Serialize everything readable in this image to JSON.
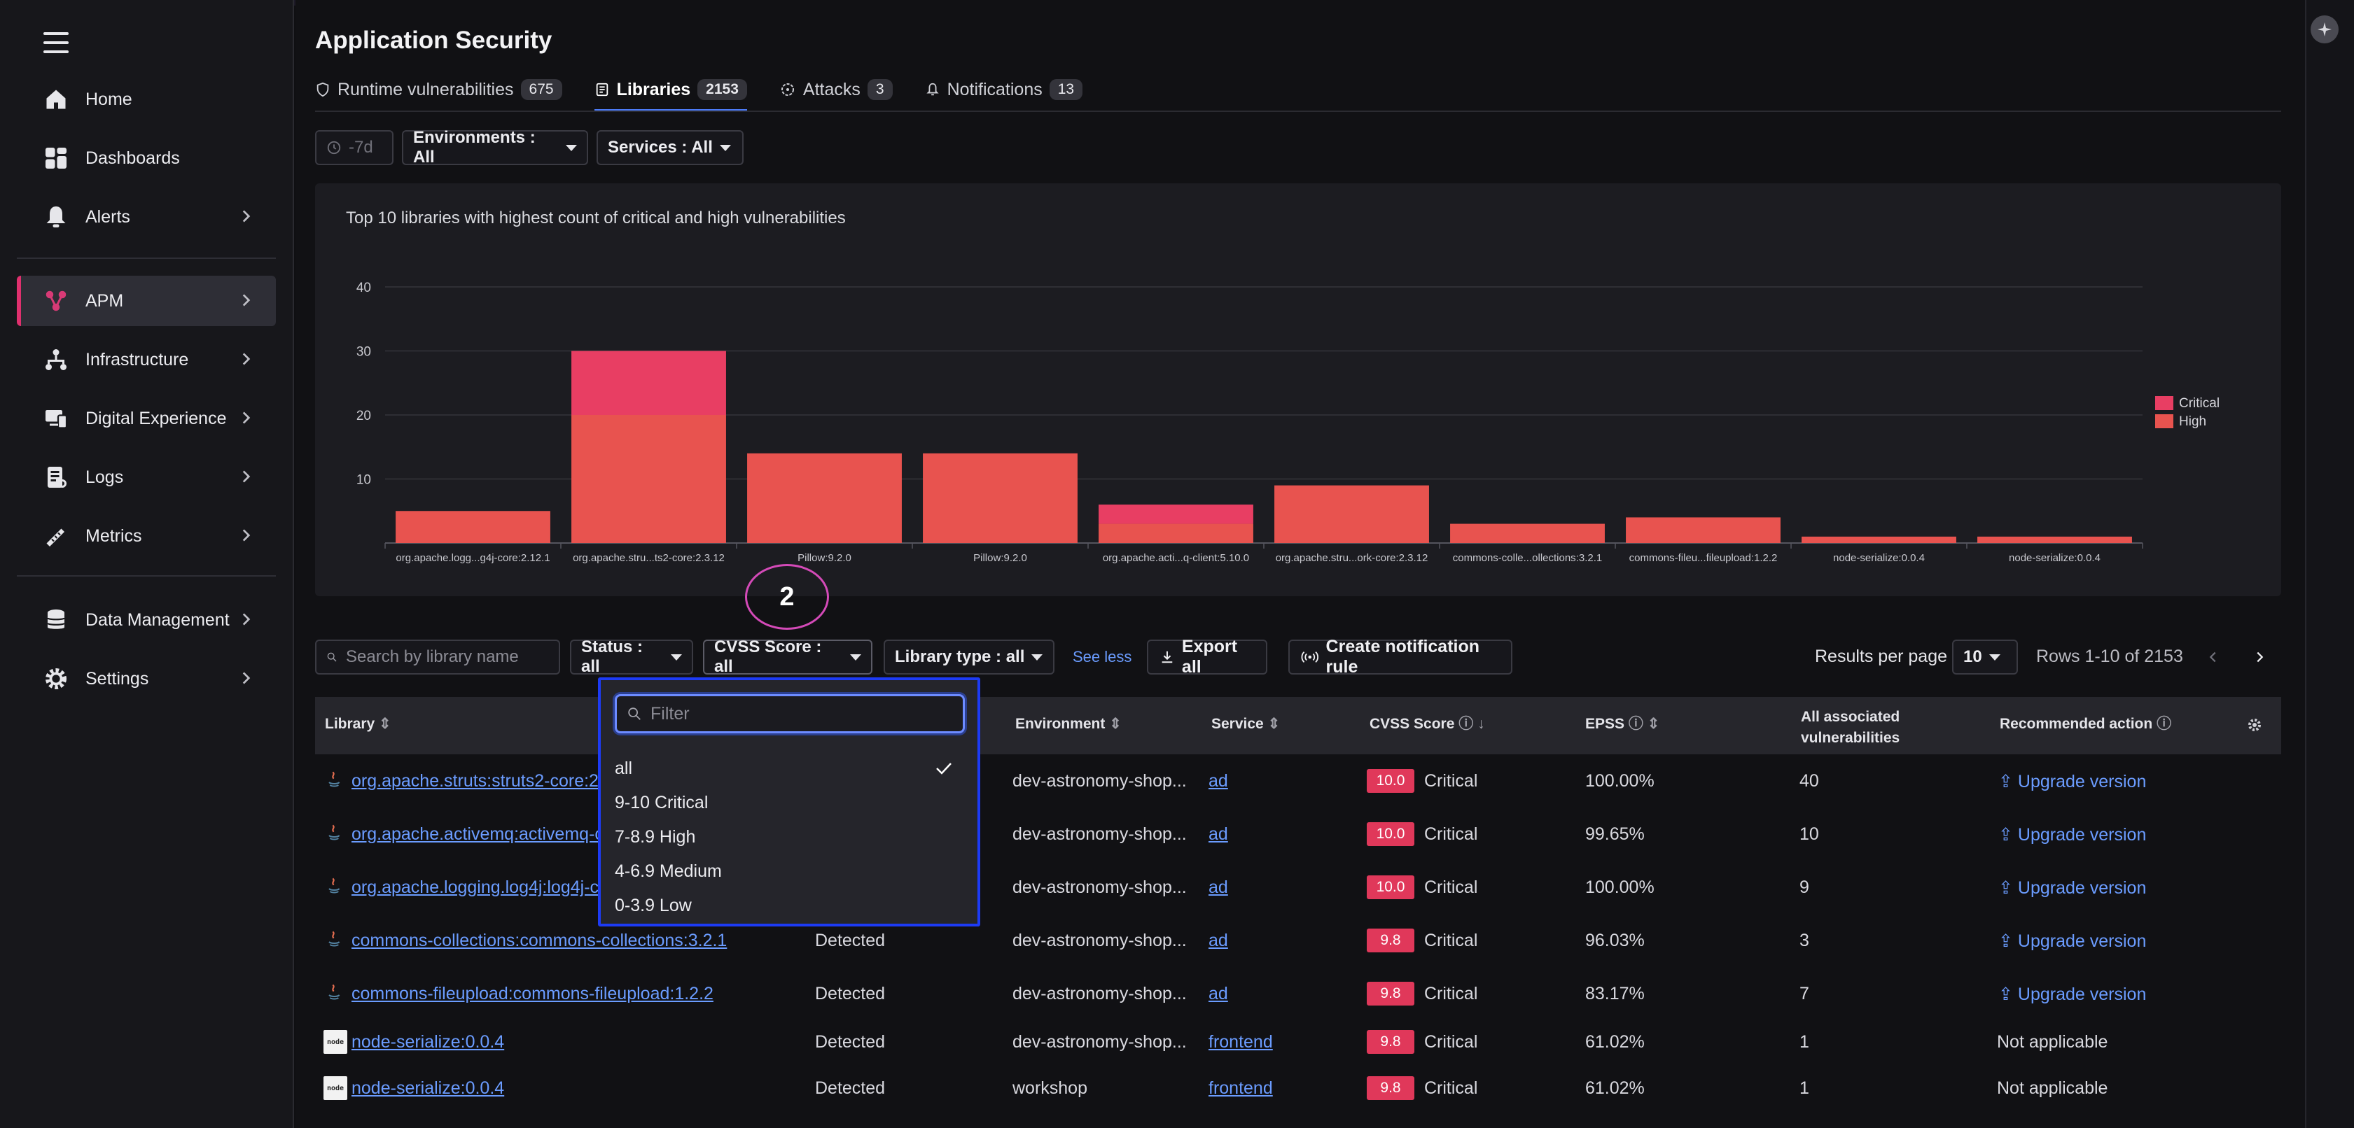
{
  "sidebar": {
    "items": [
      {
        "label": "Home",
        "icon": "home-icon"
      },
      {
        "label": "Dashboards",
        "icon": "dashboard-icon"
      },
      {
        "label": "Alerts",
        "icon": "bell-icon"
      },
      {
        "label": "APM",
        "icon": "apm-icon",
        "active": true
      },
      {
        "label": "Infrastructure",
        "icon": "infrastructure-icon"
      },
      {
        "label": "Digital Experience",
        "icon": "digital-experience-icon"
      },
      {
        "label": "Logs",
        "icon": "logs-icon"
      },
      {
        "label": "Metrics",
        "icon": "metrics-icon"
      },
      {
        "label": "Data Management",
        "icon": "database-icon"
      },
      {
        "label": "Settings",
        "icon": "gear-icon"
      }
    ]
  },
  "header": {
    "title": "Application Security",
    "tabs": [
      {
        "label": "Runtime vulnerabilities",
        "count": "675",
        "icon": "shield-icon"
      },
      {
        "label": "Libraries",
        "count": "2153",
        "icon": "library-icon",
        "active": true
      },
      {
        "label": "Attacks",
        "count": "3",
        "icon": "target-icon"
      },
      {
        "label": "Notifications",
        "count": "13",
        "icon": "bell-icon"
      }
    ]
  },
  "filters": {
    "time": "-7d",
    "environments": "Environments : All",
    "services": "Services : All"
  },
  "chart_data": {
    "type": "bar",
    "stacked": true,
    "title": "Top 10 libraries with highest count of critical and high vulnerabilities",
    "categories": [
      "org.apache.logg...g4j-core:2.12.1",
      "org.apache.stru...ts2-core:2.3.12",
      "Pillow:9.2.0",
      "Pillow:9.2.0",
      "org.apache.acti...q-client:5.10.0",
      "org.apache.stru...ork-core:2.3.12",
      "commons-colle...ollections:3.2.1",
      "commons-fileu...fileupload:1.2.2",
      "node-serialize:0.0.4",
      "node-serialize:0.0.4"
    ],
    "series": [
      {
        "name": "High",
        "color": "#e8534f",
        "values": [
          5,
          20,
          14,
          14,
          3,
          9,
          3,
          4,
          1,
          1
        ]
      },
      {
        "name": "Critical",
        "color": "#e83e63",
        "values": [
          0,
          10,
          0,
          0,
          3,
          0,
          0,
          0,
          0,
          0
        ]
      }
    ],
    "yticks": [
      10,
      20,
      30,
      40
    ],
    "ylim": [
      0,
      40
    ],
    "grid": true,
    "legend": "right"
  },
  "toolbar": {
    "search_placeholder": "Search by library name",
    "status": "Status : all",
    "cvss": "CVSS Score : all",
    "library_type": "Library type : all",
    "see_less": "See less",
    "export": "Export all",
    "create_rule": "Create notification rule",
    "results_per_page_label": "Results per page",
    "results_per_page": "10",
    "rows_label": "Rows 1-10 of 2153"
  },
  "annotation": "2",
  "table": {
    "headers": {
      "library": "Library",
      "environment": "Environment",
      "service": "Service",
      "cvss": "CVSS Score",
      "epss": "EPSS",
      "all_vulns": "All associated vulnerabilities",
      "action": "Recommended action"
    },
    "rows": [
      {
        "library": "org.apache.struts:struts2-core:2.3.12",
        "type": "java",
        "status": "",
        "environment": "dev-astronomy-shop...",
        "service": "ad",
        "score": "10.0",
        "severity": "Critical",
        "epss": "100.00%",
        "count": "40",
        "action": "Upgrade version"
      },
      {
        "library": "org.apache.activemq:activemq-client:5.10.0",
        "type": "java",
        "status": "",
        "environment": "dev-astronomy-shop...",
        "service": "ad",
        "score": "10.0",
        "severity": "Critical",
        "epss": "99.65%",
        "count": "10",
        "action": "Upgrade version"
      },
      {
        "library": "org.apache.logging.log4j:log4j-core:2.12.1",
        "type": "java",
        "status": "",
        "environment": "dev-astronomy-shop...",
        "service": "ad",
        "score": "10.0",
        "severity": "Critical",
        "epss": "100.00%",
        "count": "9",
        "action": "Upgrade version"
      },
      {
        "library": "commons-collections:commons-collections:3.2.1",
        "type": "java",
        "status": "Detected",
        "environment": "dev-astronomy-shop...",
        "service": "ad",
        "score": "9.8",
        "severity": "Critical",
        "epss": "96.03%",
        "count": "3",
        "action": "Upgrade version"
      },
      {
        "library": "commons-fileupload:commons-fileupload:1.2.2",
        "type": "java",
        "status": "Detected",
        "environment": "dev-astronomy-shop...",
        "service": "ad",
        "score": "9.8",
        "severity": "Critical",
        "epss": "83.17%",
        "count": "7",
        "action": "Upgrade version"
      },
      {
        "library": "node-serialize:0.0.4",
        "type": "node",
        "status": "Detected",
        "environment": "dev-astronomy-shop...",
        "service": "frontend",
        "score": "9.8",
        "severity": "Critical",
        "epss": "61.02%",
        "count": "1",
        "action": "Not applicable"
      },
      {
        "library": "node-serialize:0.0.4",
        "type": "node",
        "status": "Detected",
        "environment": "workshop",
        "service": "frontend",
        "score": "9.8",
        "severity": "Critical",
        "epss": "61.02%",
        "count": "1",
        "action": "Not applicable"
      }
    ]
  },
  "dropdown": {
    "filter_placeholder": "Filter",
    "options": [
      {
        "label": "all",
        "selected": true
      },
      {
        "label": "9-10 Critical"
      },
      {
        "label": "7-8.9 High"
      },
      {
        "label": "4-6.9 Medium"
      },
      {
        "label": "0-3.9 Low"
      }
    ]
  }
}
